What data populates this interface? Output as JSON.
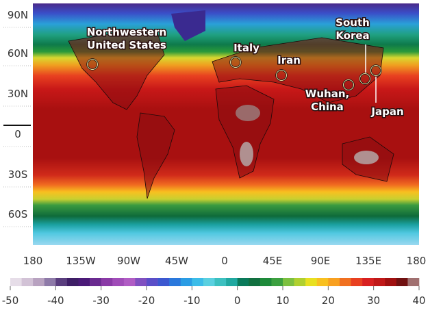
{
  "map": {
    "lat_labels": [
      "90N",
      "60N",
      "30N",
      "0",
      "30S",
      "60S"
    ],
    "lon_labels": [
      "180",
      "135W",
      "90W",
      "45W",
      "0",
      "45E",
      "90E",
      "135E",
      "180"
    ],
    "annotations": [
      {
        "lines": [
          "Northwestern",
          "United States"
        ]
      },
      {
        "lines": [
          "Italy"
        ]
      },
      {
        "lines": [
          "Iran"
        ]
      },
      {
        "lines": [
          "Wuhan,",
          "China"
        ]
      },
      {
        "lines": [
          "South",
          "Korea"
        ]
      },
      {
        "lines": [
          "Japan"
        ]
      }
    ],
    "colorbar": {
      "range": [
        -50,
        40
      ],
      "ticks": [
        -50,
        -40,
        -30,
        -20,
        -10,
        0,
        10,
        20,
        30,
        40
      ],
      "colors": [
        "#e6dde8",
        "#d2c2d6",
        "#b8a2c0",
        "#8e7aa8",
        "#5a3e7e",
        "#3e1e66",
        "#4b1a78",
        "#6a2a90",
        "#8a3aa6",
        "#a04cb8",
        "#b05cc4",
        "#8050c0",
        "#5a4ec8",
        "#3c58d0",
        "#2a78dc",
        "#2a9ce4",
        "#3cbce8",
        "#5ad0e0",
        "#3cc0c0",
        "#20a8a0",
        "#0a7a5a",
        "#127040",
        "#1e8a3a",
        "#3ca040",
        "#7cc040",
        "#b0d030",
        "#e8e020",
        "#f8c020",
        "#f8a020",
        "#f07020",
        "#e84020",
        "#d82020",
        "#c01818",
        "#a01010",
        "#701010",
        "#a07070"
      ]
    }
  }
}
